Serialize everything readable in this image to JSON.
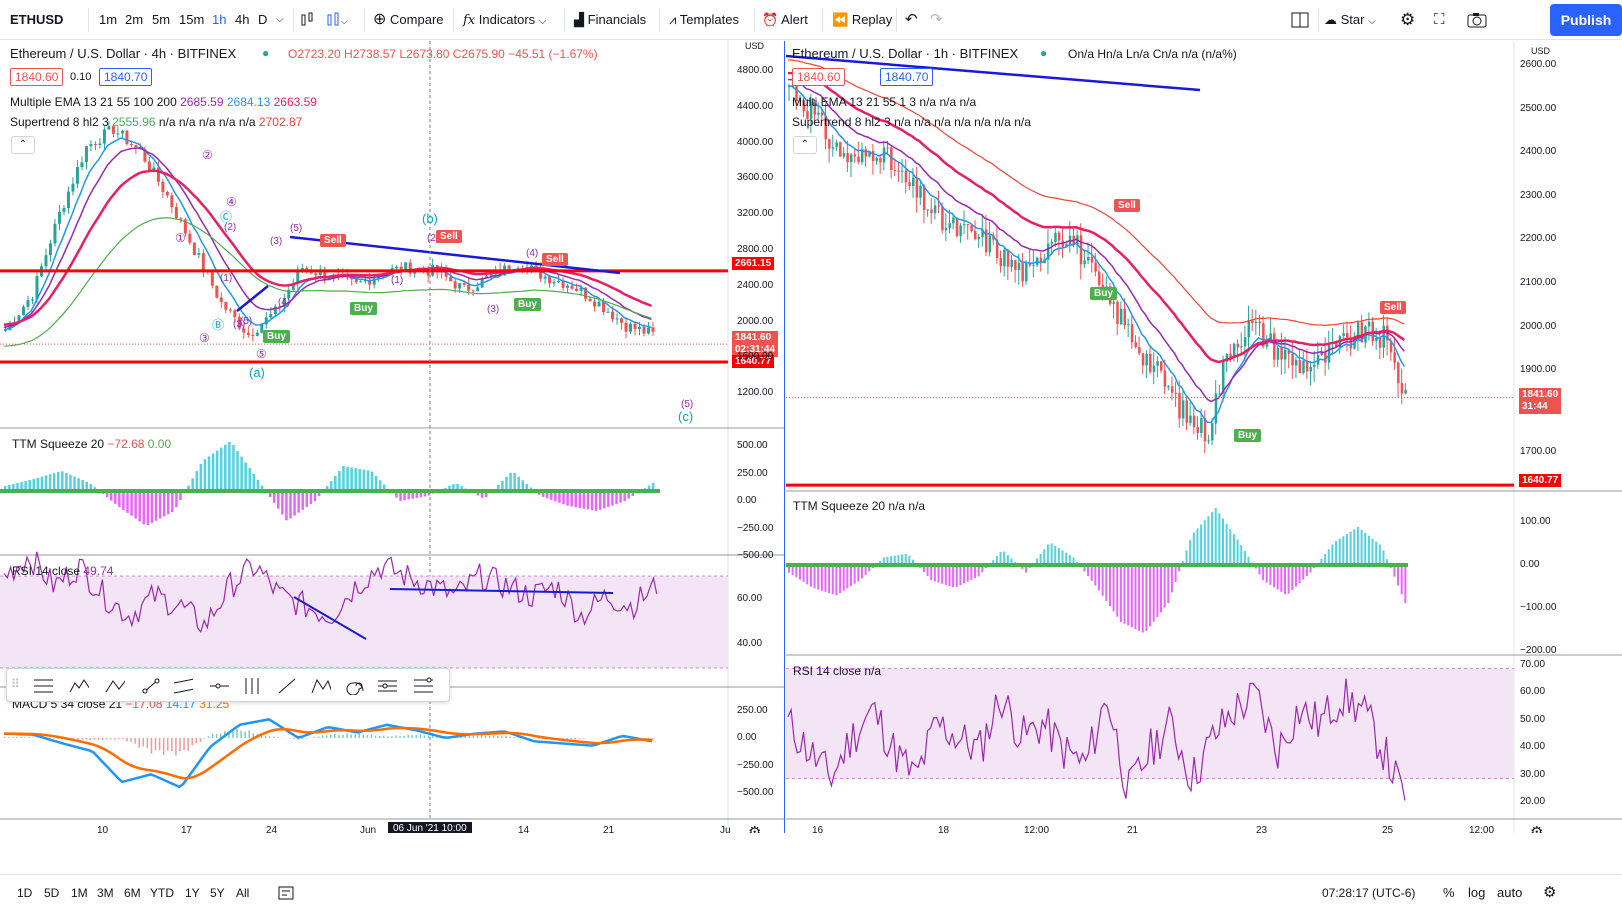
{
  "toolbar": {
    "symbol": "ETHUSD",
    "intervals": [
      "1m",
      "2m",
      "5m",
      "15m",
      "1h",
      "4h",
      "D"
    ],
    "compare": "Compare",
    "indicators": "Indicators",
    "financials": "Financials",
    "templates": "Templates",
    "alert": "Alert",
    "replay": "Replay",
    "star": "Star",
    "publish": "Publish"
  },
  "left": {
    "title": "Ethereum / U.S. Dollar · 4h · BITFINEX",
    "ohlc": "O2723.20 H2738.57 L2673.80 C2675.90 −45.51 (−1.67%)",
    "bid": "1840.60",
    "spread": "0.10",
    "ask": "1840.70",
    "ema_label": "Multiple EMA 13 21 55 100 200",
    "ema_vals": [
      "2685.59",
      "2684.13",
      "2663.59"
    ],
    "st_label": "Supertrend 8 hl2 3",
    "st_v1": "2555.96",
    "st_na": "n/a n/a n/a n/a n/a",
    "st_v2": "2702.87",
    "price_axis": [
      "4800.00",
      "4400.00",
      "4000.00",
      "3600.00",
      "3200.00",
      "2800.00",
      "2400.00",
      "2000.00",
      "1600.00",
      "1200.00"
    ],
    "axis_unit": "USD",
    "tag_upper": "2661.15",
    "tag_price": "1841.60",
    "tag_countdown": "02:31:44",
    "tag_lower": "1640.77",
    "signals": [
      "Sell",
      "Sell",
      "Sell",
      "Buy",
      "Buy",
      "Buy"
    ],
    "wave_big": [
      "(a)",
      "(b)",
      "(c)"
    ],
    "wave_small": [
      "(5)",
      "(1)",
      "(2)",
      "(3)",
      "(4)",
      "(5)",
      "(1)",
      "(2)",
      "(3)",
      "(4)",
      "(5)",
      "(3)",
      "③",
      "⑤",
      "Ⓑ",
      "Ⓒ",
      "①",
      "②",
      "④"
    ],
    "ttm_label": "TTM Squeeze 20",
    "ttm_v1": "−72.68",
    "ttm_v2": "0.00",
    "ttm_axis": [
      "500.00",
      "250.00",
      "0.00",
      "−250.00",
      "−500.00"
    ],
    "rsi_label": "RSI 14 close",
    "rsi_v": "49.74",
    "rsi_axis": [
      "60.00",
      "40.00"
    ],
    "macd_label": "MACD 5 34 close 21",
    "macd_vals": [
      "−17.08",
      "14.17",
      "31.25"
    ],
    "macd_axis": [
      "250.00",
      "0.00",
      "−250.00",
      "−500.00"
    ],
    "time_axis": [
      "10",
      "17",
      "24",
      "Jun",
      "14",
      "21",
      "Ju"
    ],
    "crosshair_time": "06 Jun '21  10:00"
  },
  "right": {
    "title": "Ethereum / U.S. Dollar · 1h · BITFINEX",
    "ohlc": "On/a Hn/a Ln/a Cn/a n/a (n/a%)",
    "bid": "1840.60",
    "ask": "1840.70",
    "ema_label": "Multi EMA 13 21 55 1 3",
    "ema_na": "n/a n/a n/a",
    "st_label": "Supertrend 8 hl2 3",
    "st_na": "n/a n/a n/a n/a n/a n/a n/a",
    "price_axis": [
      "2600.00",
      "2500.00",
      "2400.00",
      "2300.00",
      "2200.00",
      "2100.00",
      "2000.00",
      "1900.00",
      "1700.00"
    ],
    "axis_unit": "USD",
    "tag_price": "1841.60",
    "tag_countdown": "31:44",
    "tag_lower": "1640.77",
    "signals": [
      "Sell",
      "Sell",
      "Buy",
      "Buy"
    ],
    "ttm_label": "TTM Squeeze 20",
    "ttm_na": "n/a n/a",
    "ttm_axis": [
      "100.00",
      "0.00",
      "−100.00",
      "−200.00"
    ],
    "rsi_label": "RSI 14 close",
    "rsi_na": "n/a",
    "rsi_axis": [
      "70.00",
      "60.00",
      "50.00",
      "40.00",
      "30.00",
      "20.00"
    ],
    "time_axis": [
      "16",
      "18",
      "12:00",
      "21",
      "23",
      "25",
      "12:00"
    ]
  },
  "bottom": {
    "ranges": [
      "1D",
      "5D",
      "1M",
      "3M",
      "6M",
      "YTD",
      "1Y",
      "5Y",
      "All"
    ],
    "clock": "07:28:17 (UTC-6)",
    "percent": "%",
    "log": "log",
    "auto": "auto"
  },
  "colors": {
    "up": "#26a69a",
    "down": "#ef5350",
    "ema1": "#2196f3",
    "ema2": "#9c27b0",
    "ema3": "#e91e63",
    "st_up": "#4caf50",
    "st_down": "#f44336",
    "rsi": "#9c27b0",
    "rsi_band": "#f3e5f5",
    "hline": "#ff0000",
    "trend": "#1a1ad6",
    "accent": "#2962ff"
  }
}
